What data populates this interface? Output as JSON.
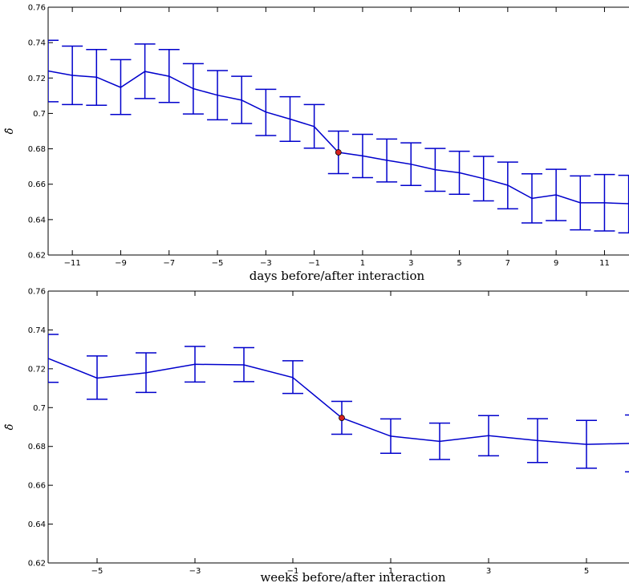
{
  "chart_data": [
    {
      "type": "line",
      "xlabel": "days before/after interaction",
      "ylabel": "δ̂",
      "xlim": [
        -12,
        12
      ],
      "ylim": [
        0.62,
        0.76
      ],
      "xticks": [
        -11,
        -9,
        -7,
        -5,
        -3,
        -1,
        1,
        3,
        5,
        7,
        9,
        11
      ],
      "xtick_labels": [
        "−11",
        "−9",
        "−7",
        "−5",
        "−3",
        "−1",
        "1",
        "3",
        "5",
        "7",
        "9",
        "11"
      ],
      "yticks": [
        0.62,
        0.64,
        0.66,
        0.68,
        0.7,
        0.72,
        0.74,
        0.76
      ],
      "ytick_labels": [
        "0.62",
        "0.64",
        "0.66",
        "0.68",
        "0.7",
        "0.72",
        "0.74",
        "0.76"
      ],
      "grid": false,
      "line_color": "#0000cc",
      "highlight_color": "#d62020",
      "highlight_x": 0,
      "x": [
        -12,
        -11,
        -10,
        -9,
        -8,
        -7,
        -6,
        -5,
        -4,
        -3,
        -2,
        -1,
        0,
        1,
        2,
        3,
        4,
        5,
        6,
        7,
        8,
        9,
        10,
        11,
        12
      ],
      "y": [
        0.724,
        0.7215,
        0.7205,
        0.7147,
        0.7237,
        0.721,
        0.714,
        0.7103,
        0.7075,
        0.7008,
        0.6968,
        0.6926,
        0.678,
        0.676,
        0.6735,
        0.6713,
        0.6682,
        0.6665,
        0.6632,
        0.6594,
        0.652,
        0.654,
        0.6495,
        0.6495,
        0.649
      ],
      "err_low": [
        0.7066,
        0.705,
        0.7046,
        0.6994,
        0.7084,
        0.7062,
        0.6997,
        0.6964,
        0.6943,
        0.6875,
        0.6842,
        0.6804,
        0.666,
        0.6637,
        0.6613,
        0.6593,
        0.656,
        0.6543,
        0.6506,
        0.6461,
        0.6381,
        0.6394,
        0.6342,
        0.6336,
        0.6325
      ],
      "err_high": [
        0.7413,
        0.738,
        0.7361,
        0.7304,
        0.7392,
        0.7361,
        0.7281,
        0.7242,
        0.721,
        0.7136,
        0.7094,
        0.705,
        0.69,
        0.6882,
        0.6855,
        0.6834,
        0.6802,
        0.6786,
        0.6757,
        0.6725,
        0.6659,
        0.6684,
        0.6647,
        0.6655,
        0.665
      ]
    },
    {
      "type": "line",
      "xlabel": "weeks before/after interaction",
      "ylabel": "δ̂",
      "xlim": [
        -6,
        6
      ],
      "ylim": [
        0.62,
        0.76
      ],
      "xticks": [
        -5,
        -3,
        -1,
        1,
        3,
        5
      ],
      "xtick_labels": [
        "−5",
        "−3",
        "−1",
        "1",
        "3",
        "5"
      ],
      "yticks": [
        0.62,
        0.64,
        0.66,
        0.68,
        0.7,
        0.72,
        0.74,
        0.76
      ],
      "ytick_labels": [
        "0.62",
        "0.64",
        "0.66",
        "0.68",
        "0.7",
        "0.72",
        "0.74",
        "0.76"
      ],
      "grid": false,
      "line_color": "#0000cc",
      "highlight_color": "#d62020",
      "highlight_x": 0,
      "x": [
        -6,
        -5,
        -4,
        -3,
        -2,
        -1,
        0,
        1,
        2,
        3,
        4,
        5,
        6
      ],
      "y": [
        0.7253,
        0.7152,
        0.7179,
        0.7223,
        0.722,
        0.7155,
        0.6947,
        0.6853,
        0.6826,
        0.6856,
        0.683,
        0.6811,
        0.6816
      ],
      "err_low": [
        0.713,
        0.7043,
        0.7078,
        0.7132,
        0.7134,
        0.7073,
        0.6863,
        0.6765,
        0.6733,
        0.6752,
        0.6717,
        0.6688,
        0.6669
      ],
      "err_high": [
        0.7377,
        0.7266,
        0.7282,
        0.7315,
        0.7309,
        0.7241,
        0.7032,
        0.6942,
        0.692,
        0.6959,
        0.6943,
        0.6934,
        0.6962
      ]
    }
  ]
}
